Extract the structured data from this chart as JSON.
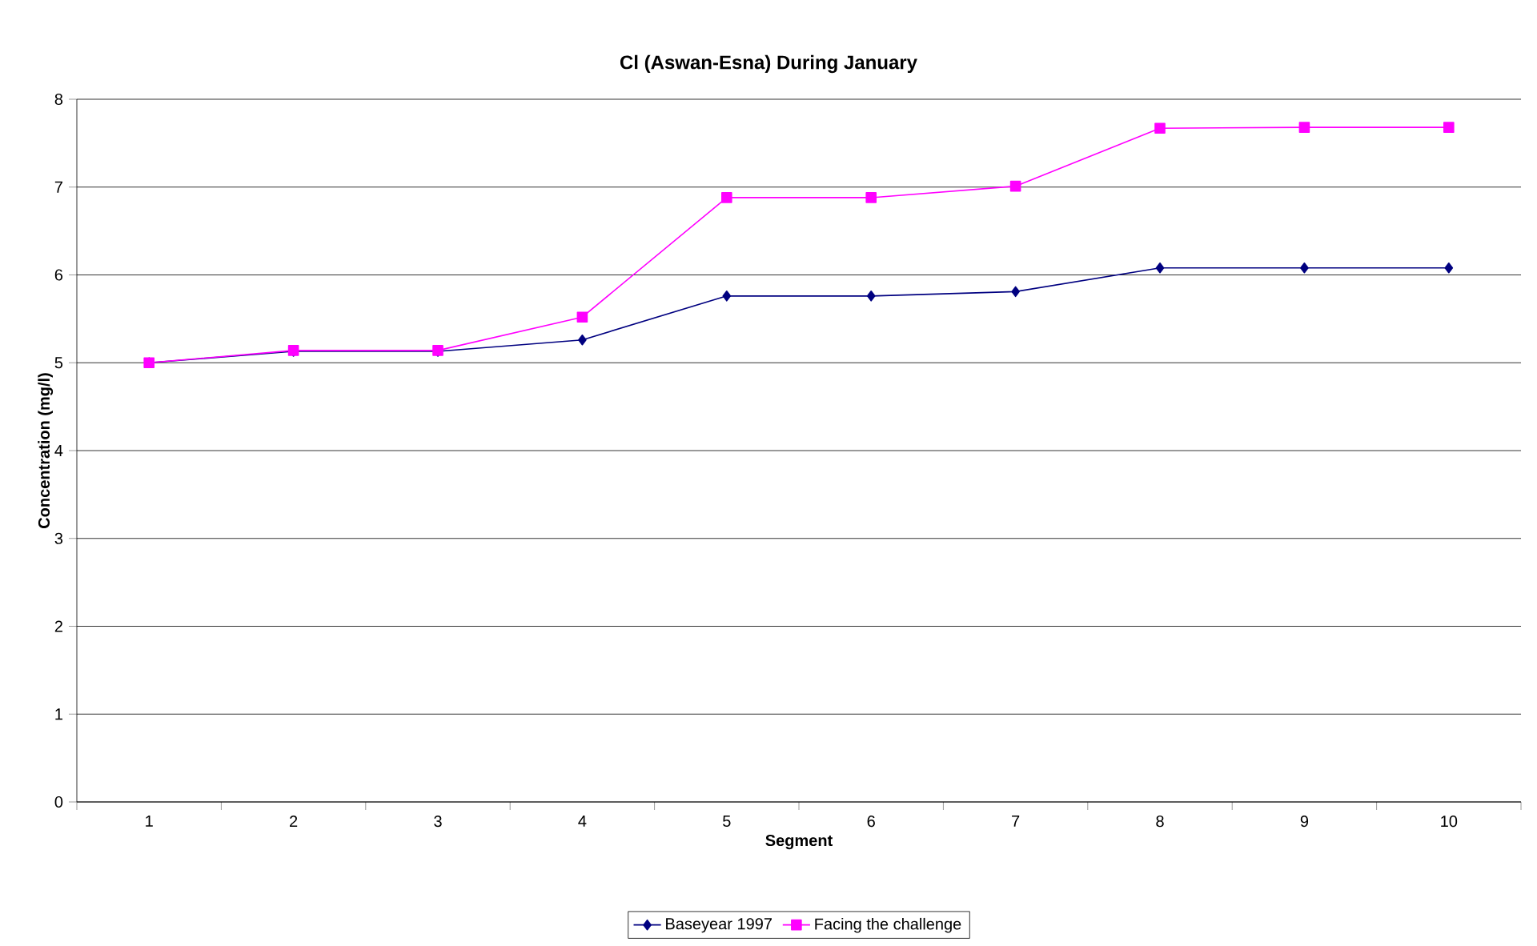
{
  "chart_data": {
    "type": "line",
    "title": "Cl (Aswan-Esna) During January",
    "xlabel": "Segment",
    "ylabel": "Concentration (mg/l)",
    "categories": [
      "1",
      "2",
      "3",
      "4",
      "5",
      "6",
      "7",
      "8",
      "9",
      "10"
    ],
    "series": [
      {
        "name": "Baseyear 1997",
        "color": "#000080",
        "marker": "diamond",
        "values": [
          5.0,
          5.13,
          5.13,
          5.26,
          5.76,
          5.76,
          5.81,
          6.08,
          6.08,
          6.08
        ]
      },
      {
        "name": "Facing the challenge",
        "color": "#ff00ff",
        "marker": "square",
        "values": [
          5.0,
          5.14,
          5.14,
          5.52,
          6.88,
          6.88,
          7.01,
          7.67,
          7.68,
          7.68
        ]
      }
    ],
    "ylim": [
      0,
      8
    ],
    "yticks": [
      0,
      1,
      2,
      3,
      4,
      5,
      6,
      7,
      8
    ],
    "grid": "y",
    "legend": "bottom",
    "line_style": "solid"
  }
}
